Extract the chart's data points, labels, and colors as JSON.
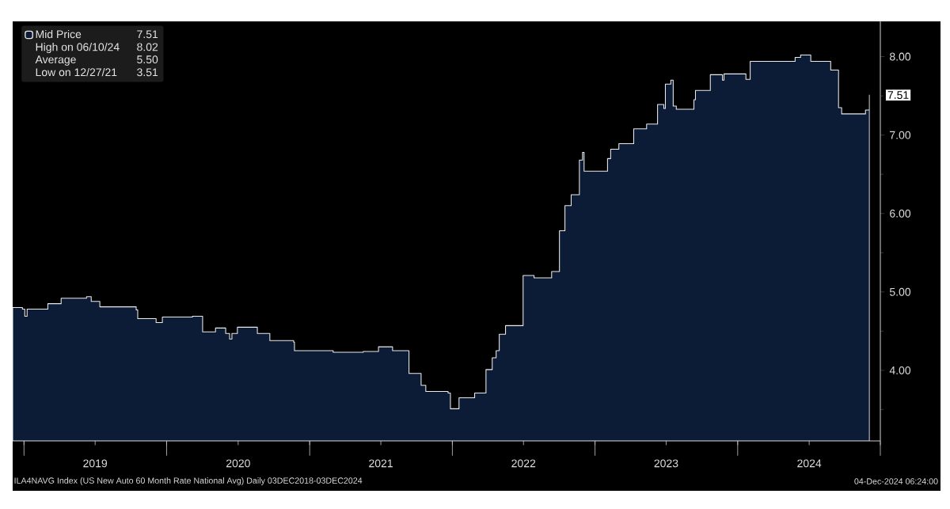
{
  "chart_data": {
    "type": "area",
    "x": [
      "2018-12-03",
      "2018-12-28",
      "2019-01-03",
      "2019-01-09",
      "2019-03-03",
      "2019-04-06",
      "2019-06-10",
      "2019-06-22",
      "2019-07-14",
      "2019-10-15",
      "2019-10-19",
      "2019-12-05",
      "2019-12-21",
      "2020-03-07",
      "2020-04-02",
      "2020-05-05",
      "2020-05-31",
      "2020-06-10",
      "2020-06-16",
      "2020-06-30",
      "2020-08-20",
      "2020-09-21",
      "2020-11-21",
      "2020-11-23",
      "2021-03-02",
      "2021-05-18",
      "2021-06-26",
      "2021-08-01",
      "2021-09-12",
      "2021-10-13",
      "2021-10-25",
      "2021-12-21",
      "2021-12-27",
      "2022-01-18",
      "2022-02-27",
      "2022-03-28",
      "2022-04-13",
      "2022-04-23",
      "2022-05-01",
      "2022-05-17",
      "2022-07-01",
      "2022-07-29",
      "2022-09-12",
      "2022-10-02",
      "2022-10-16",
      "2022-11-01",
      "2022-11-22",
      "2022-11-30",
      "2022-12-04",
      "2023-02-02",
      "2023-02-10",
      "2023-03-03",
      "2023-04-10",
      "2023-05-13",
      "2023-06-10",
      "2023-06-26",
      "2023-06-30",
      "2023-07-14",
      "2023-07-20",
      "2023-07-28",
      "2023-09-11",
      "2023-09-15",
      "2023-10-23",
      "2023-11-23",
      "2023-11-27",
      "2024-01-22",
      "2024-02-02",
      "2024-05-27",
      "2024-06-10",
      "2024-07-06",
      "2024-08-26",
      "2024-09-15",
      "2024-09-23",
      "2024-11-23",
      "2024-12-02",
      "2024-12-03"
    ],
    "series": [
      {
        "name": "Mid Price",
        "color": "#0c1b36",
        "values": [
          4.8,
          4.78,
          4.69,
          4.78,
          4.85,
          4.92,
          4.94,
          4.88,
          4.81,
          4.77,
          4.66,
          4.61,
          4.68,
          4.69,
          4.49,
          4.54,
          4.47,
          4.4,
          4.47,
          4.55,
          4.47,
          4.38,
          4.36,
          4.25,
          4.23,
          4.24,
          4.3,
          4.25,
          3.96,
          3.81,
          3.73,
          3.71,
          3.51,
          3.65,
          3.71,
          4.01,
          4.16,
          4.25,
          4.46,
          4.57,
          5.21,
          5.18,
          5.26,
          5.78,
          6.1,
          6.24,
          6.68,
          6.78,
          6.54,
          6.7,
          6.82,
          6.89,
          7.08,
          7.14,
          7.39,
          7.34,
          7.65,
          7.7,
          7.37,
          7.33,
          7.45,
          7.57,
          7.77,
          7.7,
          7.78,
          7.71,
          7.94,
          7.99,
          8.02,
          7.94,
          7.83,
          7.35,
          7.27,
          7.32,
          7.32,
          7.51
        ]
      }
    ],
    "xlim": [
      "2018-12-03",
      "2024-12-31"
    ],
    "xticks": [
      {
        "value": "2019-01-01",
        "label": null
      },
      {
        "value": "2020-01-01",
        "label": null
      },
      {
        "value": "2021-01-01",
        "label": null
      },
      {
        "value": "2022-01-01",
        "label": null
      },
      {
        "value": "2023-01-01",
        "label": null
      },
      {
        "value": "2024-01-01",
        "label": null
      },
      {
        "value": "2024-12-31",
        "label": null
      },
      {
        "value": "2019-07-02",
        "label": "2019"
      },
      {
        "value": "2020-07-02",
        "label": "2020"
      },
      {
        "value": "2021-07-02",
        "label": "2021"
      },
      {
        "value": "2022-07-02",
        "label": "2022"
      },
      {
        "value": "2023-07-02",
        "label": "2023"
      },
      {
        "value": "2024-07-02",
        "label": "2024"
      }
    ],
    "ylim": [
      3.1,
      8.45
    ],
    "yticks": [
      {
        "value": 4,
        "label": "4.00"
      },
      {
        "value": 5,
        "label": "5.00"
      },
      {
        "value": 6,
        "label": "6.00"
      },
      {
        "value": 7,
        "label": "7.00"
      },
      {
        "value": 8,
        "label": "8.00"
      },
      {
        "value": 3.5,
        "label": null
      },
      {
        "value": 4.5,
        "label": null
      },
      {
        "value": 5.5,
        "label": null
      },
      {
        "value": 6.5,
        "label": null
      },
      {
        "value": 7.5,
        "label": null
      }
    ],
    "legend": "top left",
    "annotations": [
      {
        "text": "7.51",
        "x": "2024-12-03",
        "y": 7.51
      },
      "7.51",
      "High on 06/10/24",
      "8.02",
      "Average",
      "5.50",
      "Low on 12/27/21",
      "3.51",
      "ILA4NAVG Index (US New Auto 60 Month Rate National Avg)  Daily 03DEC2018-03DEC2024",
      "04-Dec-2024 06:24:00"
    ]
  }
}
